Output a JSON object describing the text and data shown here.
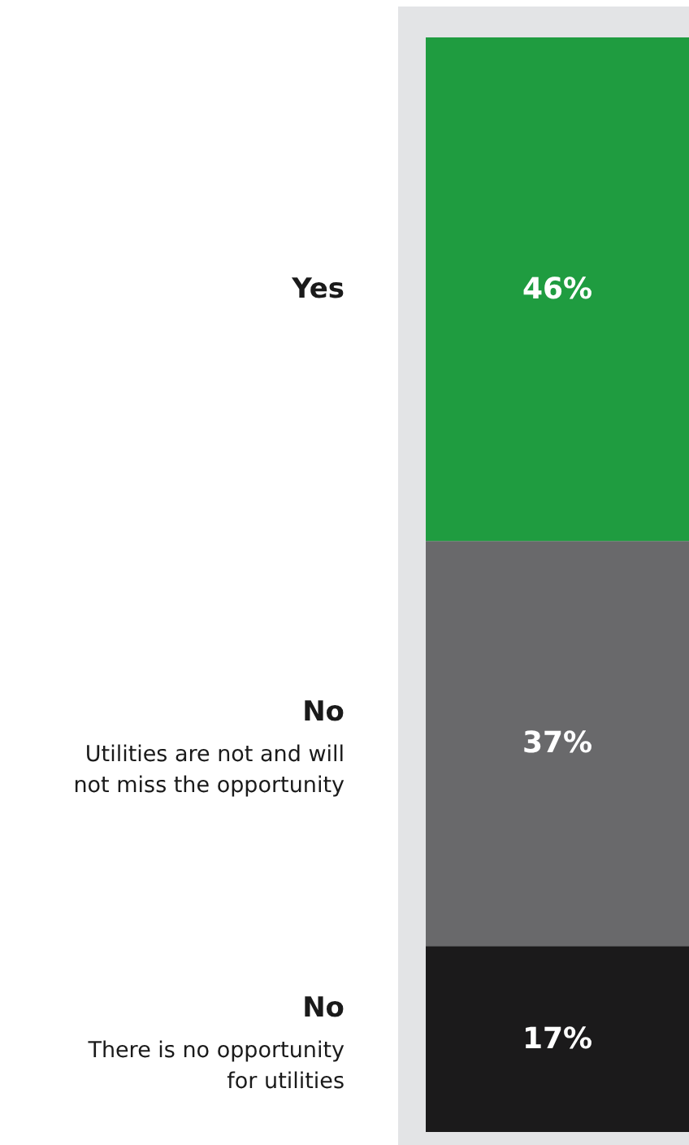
{
  "chart_data": {
    "type": "bar",
    "stacked": true,
    "categories": [
      null
    ],
    "series": [
      {
        "name": "No\nThere is no opportunity\nfor utilities",
        "color": "#1b1a1b",
        "values": [
          17
        ],
        "value_labels": [
          "17%"
        ]
      },
      {
        "name": "No\nUtilities are not and will\nnot miss the opportunity",
        "color": "#69696b",
        "values": [
          37
        ],
        "value_labels": [
          "37%"
        ]
      },
      {
        "name": "Yes",
        "color": "#1f9c40",
        "values": [
          46
        ],
        "value_labels": [
          "46%"
        ]
      }
    ]
  }
}
